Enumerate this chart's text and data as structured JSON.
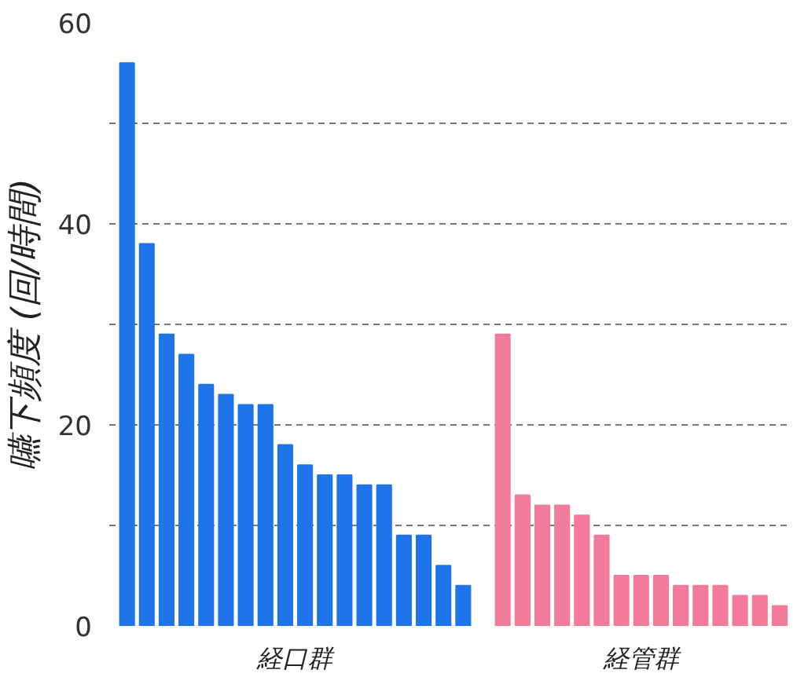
{
  "chart_data": {
    "type": "bar",
    "ylabel": "嚥下頻度 (回/時間)",
    "categories": [
      null,
      null,
      null,
      null,
      null,
      null,
      null,
      null,
      null,
      null,
      null,
      null,
      null,
      null,
      null,
      null,
      null,
      null,
      null,
      null,
      null,
      null,
      null,
      null,
      null,
      null,
      null,
      null,
      null,
      null,
      null,
      null,
      null,
      null
    ],
    "series": [
      {
        "name": "経口群",
        "color": "#1f74ea",
        "values": [
          56,
          38,
          29,
          27,
          24,
          23,
          22,
          22,
          18,
          16,
          15,
          15,
          14,
          14,
          9,
          9,
          6,
          4,
          null,
          null,
          null,
          null,
          null,
          null,
          null,
          null,
          null,
          null,
          null,
          null,
          null,
          null,
          null,
          null
        ]
      },
      {
        "name": "経管群",
        "color": "#f27b9c",
        "values": [
          null,
          null,
          null,
          null,
          null,
          null,
          null,
          null,
          null,
          null,
          null,
          null,
          null,
          null,
          null,
          null,
          null,
          null,
          null,
          29,
          13,
          12,
          12,
          11,
          9,
          5,
          5,
          5,
          4,
          4,
          4,
          3,
          3,
          2
        ]
      }
    ],
    "ylim": [
      0,
      60
    ],
    "yticks": [
      0,
      {
        "value": 10,
        "label": null
      },
      20,
      {
        "value": 30,
        "label": null
      },
      40,
      {
        "value": 50,
        "label": null
      },
      60
    ],
    "grid": "y"
  }
}
